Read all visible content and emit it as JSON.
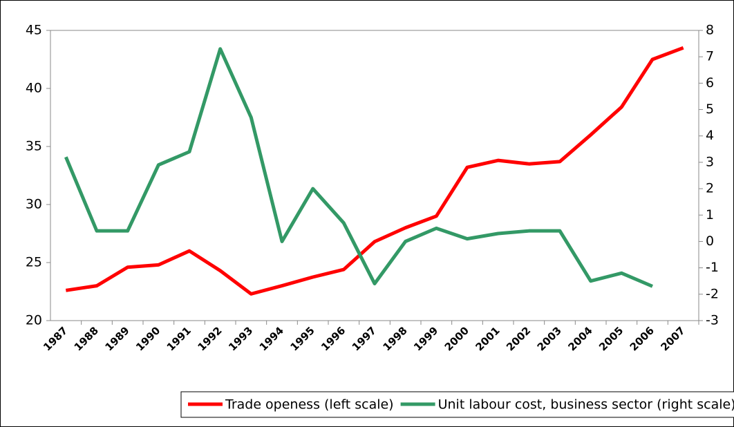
{
  "chart_data": {
    "type": "line",
    "categories": [
      "1987",
      "1988",
      "1989",
      "1990",
      "1991",
      "1992",
      "1993",
      "1994",
      "1995",
      "1996",
      "1997",
      "1998",
      "1999",
      "2000",
      "2001",
      "2002",
      "2003",
      "2004",
      "2005",
      "2006",
      "2007"
    ],
    "series": [
      {
        "name": "Trade openess (left scale)",
        "color": "#ff0000",
        "axis": "y",
        "values": [
          22.6,
          23.0,
          24.6,
          24.8,
          26.0,
          24.3,
          22.3,
          23.0,
          23.75,
          24.4,
          26.8,
          28.0,
          29.0,
          33.2,
          33.8,
          33.5,
          33.7,
          36.0,
          38.4,
          42.5,
          43.5
        ]
      },
      {
        "name": "Unit labour cost, business sector (right scale)",
        "color": "#339966",
        "axis": "y2",
        "values": [
          3.2,
          0.4,
          0.4,
          2.9,
          3.4,
          7.3,
          4.7,
          0.0,
          2.0,
          0.7,
          -1.6,
          0.0,
          0.5,
          0.1,
          0.3,
          0.4,
          0.4,
          -1.5,
          -1.2,
          -1.7,
          null
        ]
      }
    ],
    "ylim": [
      20,
      45
    ],
    "yticks": [
      20,
      25,
      30,
      35,
      40,
      45
    ],
    "y2lim": [
      -3,
      8
    ],
    "y2ticks": [
      -3,
      -2,
      -1,
      0,
      1,
      2,
      3,
      4,
      5,
      6,
      7,
      8
    ],
    "legend": "bottom"
  }
}
